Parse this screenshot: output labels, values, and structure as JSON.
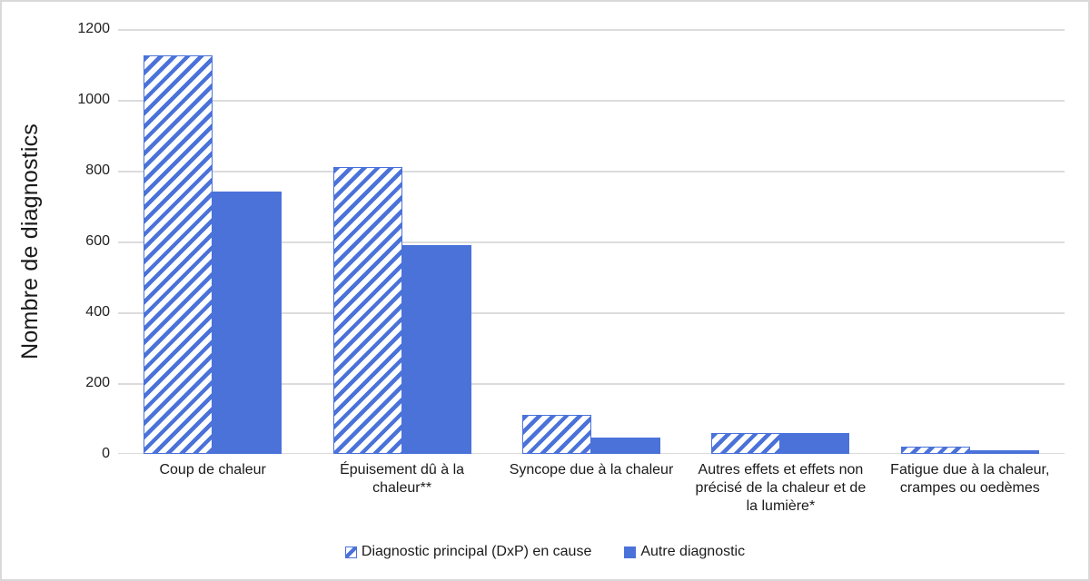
{
  "chart_data": {
    "type": "bar",
    "categories": [
      "Coup de chaleur",
      "Épuisement dû à la chaleur**",
      "Syncope due à la chaleur",
      "Autres effets et effets non précisé de la chaleur et de la lumière*",
      "Fatigue due à la chaleur, crampes ou oedèmes"
    ],
    "series": [
      {
        "name": "Diagnostic principal (DxP) en cause",
        "style": "hatched",
        "values": [
          1125,
          810,
          110,
          60,
          20
        ]
      },
      {
        "name": "Autre diagnostic",
        "style": "solid",
        "values": [
          740,
          590,
          45,
          60,
          10
        ]
      }
    ],
    "title": "",
    "xlabel": "",
    "ylabel": "Nombre de diagnostics",
    "ylim": [
      0,
      1200
    ],
    "yticks": [
      0,
      200,
      400,
      600,
      800,
      1000,
      1200
    ],
    "grid": "horizontal",
    "legend_position": "bottom"
  },
  "colors": {
    "bar_blue": "#4a72d9",
    "gridline": "#dcdcdc",
    "text": "#1a1a1a",
    "border": "#d9d9d9",
    "background": "#ffffff"
  }
}
